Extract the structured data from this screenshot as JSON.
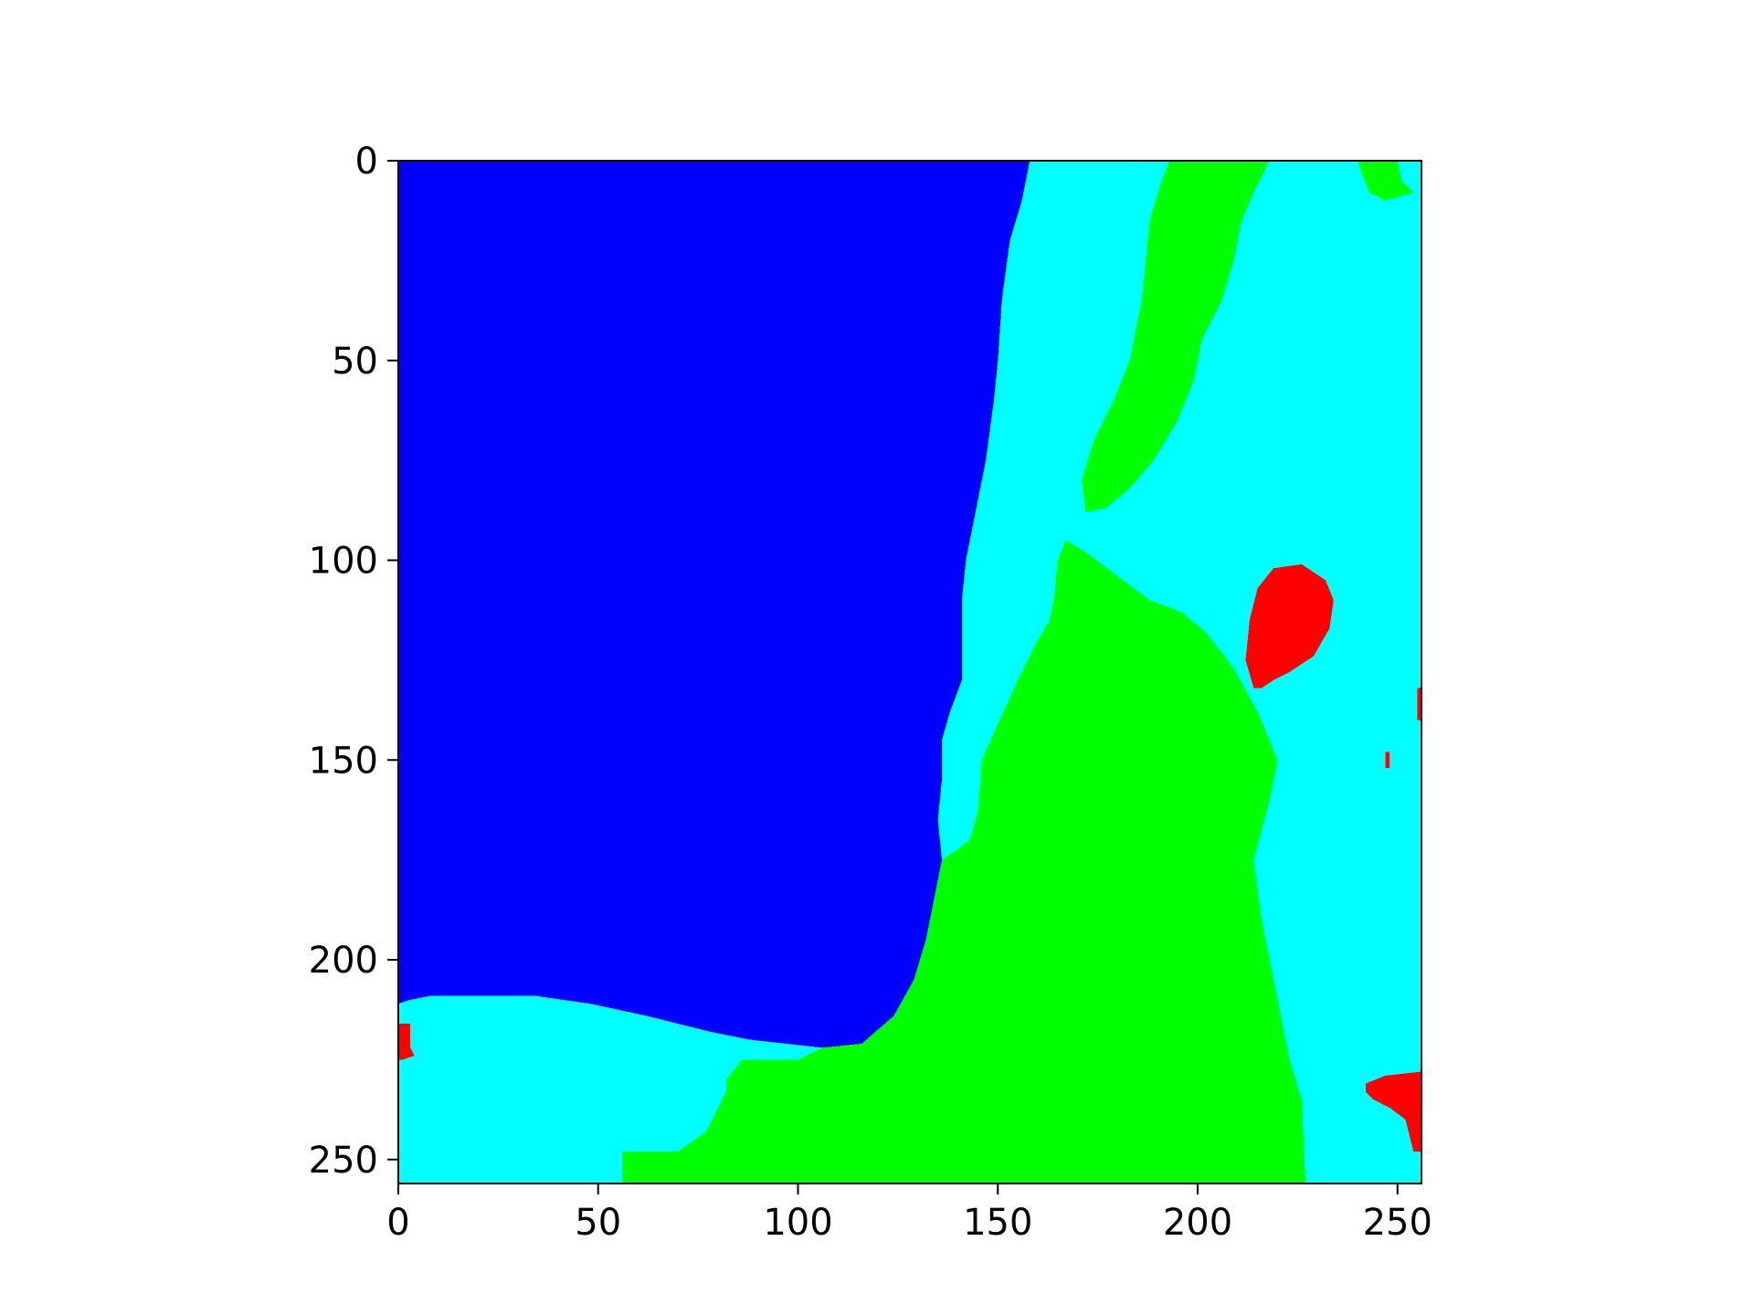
{
  "chart_data": {
    "type": "heatmap",
    "subtype": "segmentation-mask",
    "title": "",
    "xlabel": "",
    "ylabel": "",
    "xlim": [
      0,
      256
    ],
    "ylim": [
      256,
      0
    ],
    "y_axis_inverted": true,
    "grid": false,
    "legend": "none",
    "x_ticks": [
      0,
      50,
      100,
      150,
      200,
      250
    ],
    "y_ticks": [
      0,
      50,
      100,
      150,
      200,
      250
    ],
    "x_tick_labels": [
      "0",
      "50",
      "100",
      "150",
      "200",
      "250"
    ],
    "y_tick_labels": [
      "0",
      "50",
      "100",
      "150",
      "200",
      "250"
    ],
    "background_class_color": "#00ffff",
    "regions": [
      {
        "class": "blue",
        "color": "#0000ff",
        "points": [
          [
            0,
            0
          ],
          [
            158,
            0
          ],
          [
            156,
            10
          ],
          [
            153,
            20
          ],
          [
            151,
            35
          ],
          [
            150,
            50
          ],
          [
            149,
            60
          ],
          [
            147,
            75
          ],
          [
            145,
            85
          ],
          [
            144,
            90
          ],
          [
            142,
            100
          ],
          [
            141,
            110
          ],
          [
            141,
            120
          ],
          [
            141,
            130
          ],
          [
            138,
            138
          ],
          [
            136,
            145
          ],
          [
            136,
            155
          ],
          [
            135,
            165
          ],
          [
            136,
            175
          ],
          [
            134,
            185
          ],
          [
            132,
            195
          ],
          [
            129,
            205
          ],
          [
            124,
            214
          ],
          [
            116,
            221
          ],
          [
            106,
            222
          ],
          [
            97,
            221
          ],
          [
            88,
            220
          ],
          [
            78,
            218
          ],
          [
            62,
            214
          ],
          [
            48,
            211
          ],
          [
            34,
            209
          ],
          [
            22,
            209
          ],
          [
            8,
            209
          ],
          [
            3,
            210
          ],
          [
            0,
            211
          ]
        ]
      },
      {
        "class": "green",
        "color": "#00ff00",
        "points": [
          [
            167,
            95
          ],
          [
            172,
            98
          ],
          [
            180,
            104
          ],
          [
            188,
            110
          ],
          [
            196,
            113
          ],
          [
            202,
            118
          ],
          [
            209,
            127
          ],
          [
            215,
            138
          ],
          [
            220,
            150
          ],
          [
            218,
            160
          ],
          [
            214,
            175
          ],
          [
            216,
            190
          ],
          [
            219,
            205
          ],
          [
            220,
            210
          ],
          [
            223,
            225
          ],
          [
            226,
            235
          ],
          [
            227,
            256
          ],
          [
            56,
            256
          ],
          [
            56,
            248
          ],
          [
            70,
            248
          ],
          [
            77,
            243
          ],
          [
            82,
            233
          ],
          [
            82,
            230
          ],
          [
            86,
            225
          ],
          [
            100,
            225
          ],
          [
            106,
            222
          ],
          [
            116,
            221
          ],
          [
            124,
            214
          ],
          [
            129,
            205
          ],
          [
            132,
            195
          ],
          [
            134,
            185
          ],
          [
            136,
            175
          ],
          [
            139,
            173
          ],
          [
            143,
            170
          ],
          [
            145,
            163
          ],
          [
            146,
            150
          ],
          [
            150,
            141
          ],
          [
            155,
            130
          ],
          [
            160,
            120
          ],
          [
            163,
            115
          ],
          [
            164,
            110
          ],
          [
            165,
            100
          ]
        ]
      },
      {
        "class": "green",
        "color": "#00ff00",
        "points": [
          [
            193,
            0
          ],
          [
            218,
            0
          ],
          [
            214,
            8
          ],
          [
            211,
            15
          ],
          [
            209,
            25
          ],
          [
            206,
            35
          ],
          [
            201,
            45
          ],
          [
            199,
            55
          ],
          [
            195,
            65
          ],
          [
            189,
            75
          ],
          [
            183,
            82
          ],
          [
            177,
            87
          ],
          [
            172,
            88
          ],
          [
            171,
            80
          ],
          [
            174,
            70
          ],
          [
            179,
            60
          ],
          [
            183,
            50
          ],
          [
            186,
            35
          ],
          [
            188,
            15
          ],
          [
            191,
            5
          ]
        ]
      },
      {
        "class": "green",
        "color": "#00ff00",
        "points": [
          [
            240,
            0
          ],
          [
            250,
            0
          ],
          [
            251,
            5
          ],
          [
            254,
            8
          ],
          [
            247,
            10
          ],
          [
            243,
            8
          ],
          [
            241,
            3
          ]
        ]
      },
      {
        "class": "red",
        "color": "#ff0000",
        "points": [
          [
            219,
            102
          ],
          [
            226,
            101
          ],
          [
            232,
            105
          ],
          [
            234,
            110
          ],
          [
            233,
            117
          ],
          [
            229,
            124
          ],
          [
            223,
            128
          ],
          [
            219,
            130
          ],
          [
            216,
            132
          ],
          [
            214,
            132
          ],
          [
            212,
            125
          ],
          [
            213,
            115
          ],
          [
            215,
            107
          ]
        ]
      },
      {
        "class": "red",
        "color": "#ff0000",
        "points": [
          [
            242,
            231
          ],
          [
            247,
            229
          ],
          [
            256,
            228
          ],
          [
            256,
            248
          ],
          [
            254,
            248
          ],
          [
            252,
            240
          ],
          [
            248,
            237
          ],
          [
            244,
            235
          ],
          [
            242,
            233
          ]
        ]
      },
      {
        "class": "red",
        "color": "#ff0000",
        "points": [
          [
            0,
            216
          ],
          [
            3,
            216
          ],
          [
            3,
            222
          ],
          [
            4,
            224
          ],
          [
            1,
            225
          ],
          [
            0,
            225
          ]
        ]
      },
      {
        "class": "red",
        "color": "#ff0000",
        "points": [
          [
            255,
            132
          ],
          [
            256,
            132
          ],
          [
            256,
            140
          ],
          [
            255,
            140
          ]
        ]
      },
      {
        "class": "red",
        "color": "#ff0000",
        "points": [
          [
            247,
            148
          ],
          [
            248,
            148
          ],
          [
            248,
            152
          ],
          [
            247,
            152
          ]
        ]
      }
    ]
  }
}
